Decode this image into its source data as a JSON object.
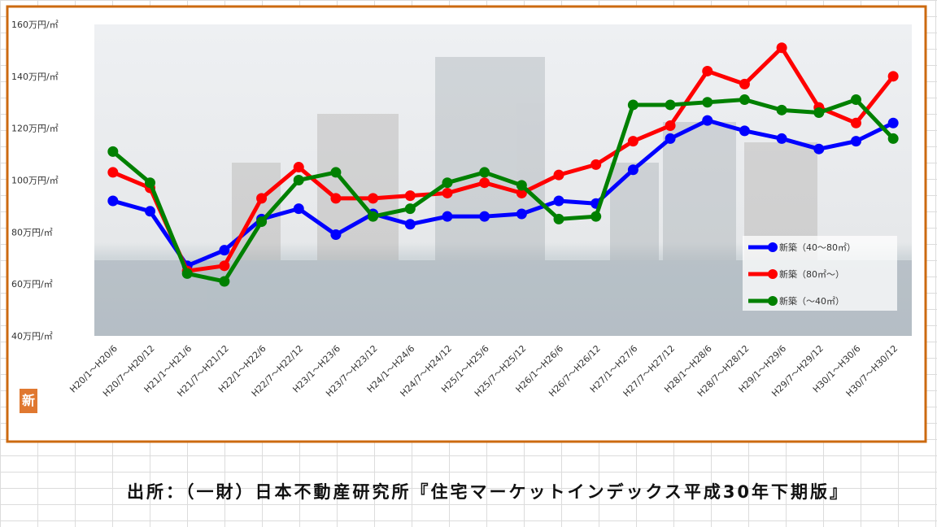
{
  "badge": "新",
  "source": "出所：（一財）日本不動産研究所『住宅マーケットインデックス平成30年下期版』",
  "chart_data": {
    "type": "line",
    "categories": [
      "H20/1～H20/6",
      "H20/7～H20/12",
      "H21/1～H21/6",
      "H21/7～H21/12",
      "H22/1～H22/6",
      "H22/7～H22/12",
      "H23/1～H23/6",
      "H23/7～H23/12",
      "H24/1～H24/6",
      "H24/7～H24/12",
      "H25/1～H25/6",
      "H25/7～H25/12",
      "H26/1～H26/6",
      "H26/7～H26/12",
      "H27/1～H27/6",
      "H27/7～H27/12",
      "H28/1～H28/6",
      "H28/7～H28/12",
      "H29/1～H29/6",
      "H29/7～H29/12",
      "H30/1～H30/6",
      "H30/7～H30/12"
    ],
    "series": [
      {
        "name": "新築（40～80㎡）",
        "color": "#0000ff",
        "values": [
          92,
          88,
          67,
          73,
          85,
          89,
          79,
          87,
          83,
          86,
          86,
          87,
          92,
          91,
          104,
          116,
          123,
          119,
          116,
          112,
          115,
          122
        ]
      },
      {
        "name": "新築（80㎡～）",
        "color": "#ff0000",
        "values": [
          103,
          97,
          65,
          67,
          93,
          105,
          93,
          93,
          94,
          95,
          99,
          95,
          102,
          106,
          115,
          121,
          142,
          137,
          151,
          128,
          122,
          140
        ]
      },
      {
        "name": "新築（～40㎡）",
        "color": "#008000",
        "values": [
          111,
          99,
          64,
          61,
          84,
          100,
          103,
          86,
          89,
          99,
          103,
          98,
          85,
          86,
          129,
          129,
          130,
          131,
          127,
          126,
          131,
          116
        ]
      }
    ],
    "ylim": [
      40,
      160
    ],
    "yticks": [
      {
        "value": 40,
        "label": "40万円/㎡"
      },
      {
        "value": 60,
        "label": "60万円/㎡"
      },
      {
        "value": 80,
        "label": "80万円/㎡"
      },
      {
        "value": 100,
        "label": "100万円/㎡"
      },
      {
        "value": 120,
        "label": "120万円/㎡"
      },
      {
        "value": 140,
        "label": "140万円/㎡"
      },
      {
        "value": 160,
        "label": "160万円/㎡"
      }
    ]
  }
}
